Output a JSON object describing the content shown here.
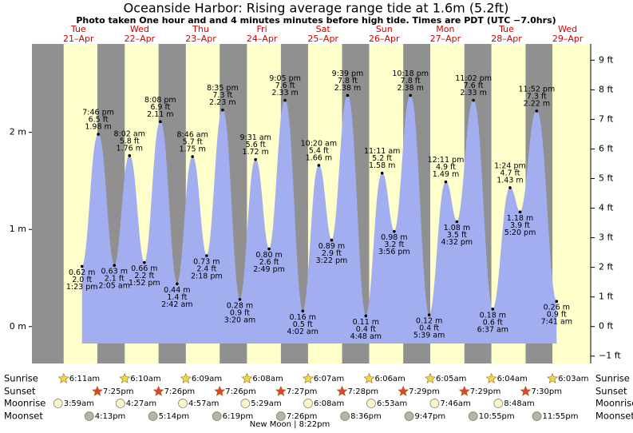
{
  "chart_data": {
    "type": "area",
    "title": "Oceanside Harbor: Rising average range tide at 1.6m (5.2ft)",
    "subtitle": "Photo taken One hour and and 4 minutes minutes before high tide. Times are PDT (UTC −7.0hrs)",
    "days": [
      {
        "weekday": "Tue",
        "date": "21–Apr"
      },
      {
        "weekday": "Wed",
        "date": "22–Apr"
      },
      {
        "weekday": "Thu",
        "date": "23–Apr"
      },
      {
        "weekday": "Fri",
        "date": "24–Apr"
      },
      {
        "weekday": "Sat",
        "date": "25–Apr"
      },
      {
        "weekday": "Sun",
        "date": "26–Apr"
      },
      {
        "weekday": "Mon",
        "date": "27–Apr"
      },
      {
        "weekday": "Tue",
        "date": "28–Apr"
      },
      {
        "weekday": "Wed",
        "date": "29–Apr"
      }
    ],
    "ylim": [
      -0.38,
      2.91
    ],
    "yticks": [
      {
        "value": 0,
        "label": "0 m"
      },
      {
        "value": 1,
        "label": "1 m"
      },
      {
        "value": 2,
        "label": "2 m"
      }
    ],
    "y2lim": [
      -1.25,
      9.55
    ],
    "y2ticks": [
      {
        "value": -1,
        "label": "−1 ft"
      },
      {
        "value": 0,
        "label": "0 ft"
      },
      {
        "value": 1,
        "label": "1 ft"
      },
      {
        "value": 2,
        "label": "2 ft"
      },
      {
        "value": 3,
        "label": "3 ft"
      },
      {
        "value": 4,
        "label": "4 ft"
      },
      {
        "value": 5,
        "label": "5 ft"
      },
      {
        "value": 6,
        "label": "6 ft"
      },
      {
        "value": 7,
        "label": "7 ft"
      },
      {
        "value": 8,
        "label": "8 ft"
      },
      {
        "value": 9,
        "label": "9 ft"
      }
    ],
    "tide": {
      "color": "#a3aef0",
      "times": [
        "1:23 pm",
        "7:46 pm",
        "2:05 am",
        "8:02 am",
        "1:52 pm",
        "8:08 pm",
        "2:42 am",
        "8:46 am",
        "2:18 pm",
        "8:35 pm",
        "3:20 am",
        "9:31 am",
        "2:49 pm",
        "9:05 pm",
        "4:02 am",
        "10:20 am",
        "3:22 pm",
        "9:39 pm",
        "4:48 am",
        "11:11 am",
        "3:56 pm",
        "10:18 pm",
        "5:39 am",
        "12:11 pm",
        "4:32 pm",
        "11:02 pm",
        "6:37 am",
        "1:24 pm",
        "5:20 pm",
        "11:52 pm",
        "7:41 am"
      ],
      "values": [
        0.62,
        1.98,
        0.63,
        1.76,
        0.66,
        2.11,
        0.44,
        1.75,
        0.73,
        2.23,
        0.28,
        1.72,
        0.8,
        2.33,
        0.16,
        1.66,
        0.89,
        2.38,
        0.11,
        1.58,
        0.98,
        2.38,
        0.12,
        1.49,
        1.08,
        2.33,
        0.18,
        1.43,
        1.18,
        2.22,
        0.26
      ],
      "value_labels": [
        "0.62 m",
        "1.98 m",
        "0.63 m",
        "1.76 m",
        "0.66 m",
        "2.11 m",
        "0.44 m",
        "1.75 m",
        "0.73 m",
        "2.23 m",
        "0.28 m",
        "1.72 m",
        "0.80 m",
        "2.33 m",
        "0.16 m",
        "1.66 m",
        "0.89 m",
        "2.38 m",
        "0.11 m",
        "1.58 m",
        "0.98 m",
        "2.38 m",
        "0.12 m",
        "1.49 m",
        "1.08 m",
        "2.33 m",
        "0.18 m",
        "1.43 m",
        "1.18 m",
        "2.22 m",
        "0.26 m"
      ],
      "value_labels_ft": [
        "2.0 ft",
        "6.5 ft",
        "2.1 ft",
        "5.8 ft",
        "2.2 ft",
        "6.9 ft",
        "1.4 ft",
        "5.7 ft",
        "2.4 ft",
        "7.3 ft",
        "0.9 ft",
        "5.6 ft",
        "2.6 ft",
        "7.6 ft",
        "0.5 ft",
        "5.4 ft",
        "2.9 ft",
        "7.8 ft",
        "0.4 ft",
        "5.2 ft",
        "3.2 ft",
        "7.8 ft",
        "0.4 ft",
        "4.9 ft",
        "3.5 ft",
        "7.6 ft",
        "0.6 ft",
        "4.7 ft",
        "3.9 ft",
        "7.3 ft",
        "0.9 ft"
      ]
    },
    "rows": [
      {
        "label": "Sunrise",
        "marker": "star",
        "color": "#f2d64a",
        "times": [
          "6:11am",
          "6:10am",
          "6:09am",
          "6:08am",
          "6:07am",
          "6:06am",
          "6:05am",
          "6:04am",
          "6:03am"
        ]
      },
      {
        "label": "Sunset",
        "marker": "star",
        "color": "#e0442a",
        "times": [
          "7:25pm",
          "7:26pm",
          "7:26pm",
          "7:27pm",
          "7:28pm",
          "7:29pm",
          "7:29pm",
          "7:30pm"
        ]
      },
      {
        "label": "Moonrise",
        "marker": "circle",
        "color": "#fbf7c8",
        "times": [
          "3:59am",
          "4:27am",
          "4:57am",
          "5:29am",
          "6:08am",
          "6:53am",
          "7:46am",
          "8:48am"
        ]
      },
      {
        "label": "Moonset",
        "marker": "circle",
        "color": "#b5b5a0",
        "times": [
          "4:13pm",
          "5:14pm",
          "6:19pm",
          "7:26pm",
          "8:36pm",
          "9:47pm",
          "10:55pm",
          "11:55pm"
        ]
      }
    ],
    "moon_phase": "New Moon | 8:22pm"
  }
}
